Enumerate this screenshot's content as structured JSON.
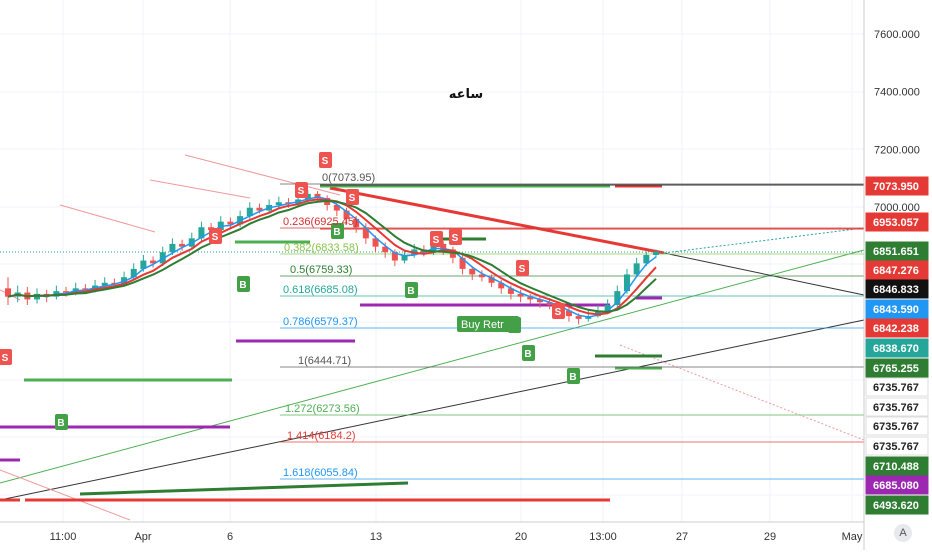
{
  "chart_data": {
    "type": "candlestick",
    "title": "ساعه",
    "ylim": [
      6420,
      7700
    ],
    "y_ticks": [
      "7600.000",
      "7400.000",
      "7200.000",
      "7000.000"
    ],
    "x_ticks": [
      "11:00",
      "Apr",
      "6",
      "13",
      "20",
      "13:00",
      "27",
      "29",
      "May"
    ],
    "fib_levels": [
      {
        "label": "0(7073.95)",
        "value": 7073.95,
        "color": "#555555"
      },
      {
        "label": "0.236(6925.45)",
        "value": 6925.45,
        "color": "#d32f2f"
      },
      {
        "label": "0.382(6833.58)",
        "value": 6833.58,
        "color": "#8bc34a"
      },
      {
        "label": "0.5(6759.33)",
        "value": 6759.33,
        "color": "#2e7d32"
      },
      {
        "label": "0.618(6685.08)",
        "value": 6685.08,
        "color": "#26a69a"
      },
      {
        "label": "0.786(6579.37)",
        "value": 6579.37,
        "color": "#2196f3"
      },
      {
        "label": "1(6444.71)",
        "value": 6444.71,
        "color": "#555555"
      },
      {
        "label": "1.272(6273.56)",
        "value": 6273.56,
        "color": "#4caf50"
      },
      {
        "label": "1.414(6184.2)",
        "value": 6184.2,
        "color": "#e53935"
      },
      {
        "label": "1.618(6055.84)",
        "value": 6055.84,
        "color": "#2196f3"
      }
    ],
    "price_badges": [
      {
        "label": "7073.950",
        "color": "#e53935"
      },
      {
        "label": "6953.057",
        "color": "#e53935"
      },
      {
        "label": "6851.651",
        "color": "#2e7d32"
      },
      {
        "label": "6847.276",
        "color": "#e53935"
      },
      {
        "label": "6846.833",
        "color": "#111111"
      },
      {
        "label": "6843.590",
        "color": "#2196f3"
      },
      {
        "label": "6842.238",
        "color": "#e53935"
      },
      {
        "label": "6838.670",
        "color": "#26a69a"
      },
      {
        "label": "6765.255",
        "color": "#2e7d32"
      },
      {
        "label": "6735.767",
        "color": "#ffffff",
        "text": "#222222"
      },
      {
        "label": "6735.767",
        "color": "#ffffff",
        "text": "#222222"
      },
      {
        "label": "6735.767",
        "color": "#ffffff",
        "text": "#222222"
      },
      {
        "label": "6735.767",
        "color": "#ffffff",
        "text": "#222222"
      },
      {
        "label": "6710.488",
        "color": "#2e7d32"
      },
      {
        "label": "6685.080",
        "color": "#9c27b0"
      },
      {
        "label": "6493.620",
        "color": "#2e7d32"
      }
    ],
    "signals": [
      {
        "type": "S",
        "color": "#ef5350"
      },
      {
        "type": "S",
        "color": "#ef5350"
      },
      {
        "type": "S",
        "color": "#ef5350"
      },
      {
        "type": "S",
        "color": "#ef5350"
      },
      {
        "type": "S",
        "color": "#ef5350"
      },
      {
        "type": "S",
        "color": "#ef5350"
      },
      {
        "type": "S",
        "color": "#ef5350"
      },
      {
        "type": "S",
        "color": "#ef5350"
      },
      {
        "type": "S",
        "color": "#ef5350"
      },
      {
        "type": "B",
        "color": "#43a047"
      },
      {
        "type": "B",
        "color": "#43a047"
      },
      {
        "type": "B",
        "color": "#43a047"
      },
      {
        "type": "B",
        "color": "#43a047"
      },
      {
        "type": "B",
        "color": "#43a047"
      },
      {
        "type": "B",
        "color": "#43a047"
      },
      {
        "type": "B",
        "color": "#43a047"
      }
    ],
    "buy_retrace_label": "Buy Retr",
    "candles": [
      [
        6720,
        6690,
        6760,
        6660
      ],
      [
        6690,
        6705,
        6730,
        6670
      ],
      [
        6705,
        6680,
        6725,
        6660
      ],
      [
        6680,
        6700,
        6720,
        6665
      ],
      [
        6700,
        6690,
        6715,
        6670
      ],
      [
        6690,
        6710,
        6730,
        6680
      ],
      [
        6710,
        6705,
        6725,
        6690
      ],
      [
        6705,
        6720,
        6740,
        6695
      ],
      [
        6720,
        6715,
        6735,
        6700
      ],
      [
        6715,
        6730,
        6750,
        6705
      ],
      [
        6730,
        6740,
        6760,
        6720
      ],
      [
        6740,
        6735,
        6755,
        6725
      ],
      [
        6735,
        6760,
        6780,
        6730
      ],
      [
        6760,
        6790,
        6810,
        6750
      ],
      [
        6790,
        6820,
        6840,
        6780
      ],
      [
        6820,
        6810,
        6835,
        6795
      ],
      [
        6810,
        6850,
        6870,
        6800
      ],
      [
        6850,
        6880,
        6900,
        6840
      ],
      [
        6880,
        6870,
        6895,
        6855
      ],
      [
        6870,
        6900,
        6920,
        6860
      ],
      [
        6900,
        6940,
        6960,
        6890
      ],
      [
        6940,
        6930,
        6955,
        6915
      ],
      [
        6930,
        6960,
        6980,
        6920
      ],
      [
        6960,
        6950,
        6975,
        6935
      ],
      [
        6950,
        6980,
        7000,
        6940
      ],
      [
        6980,
        7010,
        7030,
        6970
      ],
      [
        7010,
        7000,
        7025,
        6990
      ],
      [
        7000,
        7020,
        7040,
        6990
      ],
      [
        7020,
        7030,
        7050,
        7010
      ],
      [
        7030,
        7025,
        7045,
        7010
      ],
      [
        7025,
        7040,
        7060,
        7015
      ],
      [
        7040,
        7060,
        7074,
        7030
      ],
      [
        7060,
        7045,
        7070,
        7030
      ],
      [
        7045,
        7020,
        7055,
        7000
      ],
      [
        7020,
        7000,
        7030,
        6980
      ],
      [
        7000,
        6970,
        7010,
        6950
      ],
      [
        6970,
        6940,
        6980,
        6920
      ],
      [
        6940,
        6900,
        6955,
        6880
      ],
      [
        6900,
        6870,
        6910,
        6850
      ],
      [
        6870,
        6850,
        6885,
        6830
      ],
      [
        6850,
        6820,
        6860,
        6800
      ],
      [
        6820,
        6840,
        6860,
        6810
      ],
      [
        6840,
        6860,
        6880,
        6830
      ],
      [
        6860,
        6850,
        6875,
        6835
      ],
      [
        6850,
        6880,
        6900,
        6840
      ],
      [
        6880,
        6860,
        6890,
        6840
      ],
      [
        6860,
        6830,
        6870,
        6810
      ],
      [
        6830,
        6790,
        6840,
        6770
      ],
      [
        6790,
        6770,
        6800,
        6750
      ],
      [
        6770,
        6760,
        6785,
        6745
      ],
      [
        6760,
        6740,
        6770,
        6725
      ],
      [
        6740,
        6720,
        6750,
        6700
      ],
      [
        6720,
        6700,
        6730,
        6680
      ],
      [
        6700,
        6690,
        6715,
        6670
      ],
      [
        6690,
        6680,
        6700,
        6665
      ],
      [
        6680,
        6670,
        6695,
        6650
      ],
      [
        6670,
        6660,
        6685,
        6645
      ],
      [
        6660,
        6640,
        6670,
        6620
      ],
      [
        6640,
        6620,
        6650,
        6600
      ],
      [
        6620,
        6610,
        6630,
        6590
      ],
      [
        6610,
        6620,
        6640,
        6600
      ],
      [
        6620,
        6640,
        6660,
        6615
      ],
      [
        6640,
        6660,
        6680,
        6630
      ],
      [
        6660,
        6710,
        6730,
        6650
      ],
      [
        6710,
        6770,
        6790,
        6700
      ],
      [
        6770,
        6810,
        6830,
        6760
      ],
      [
        6810,
        6840,
        6852,
        6800
      ],
      [
        6840,
        6851,
        6860,
        6830
      ]
    ]
  }
}
